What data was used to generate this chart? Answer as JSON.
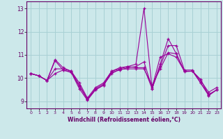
{
  "xlabel": "Windchill (Refroidissement éolien,°C)",
  "background_color": "#cce8ea",
  "grid_color": "#a8d0d4",
  "line_color": "#990099",
  "xlim": [
    -0.5,
    23.5
  ],
  "ylim": [
    8.7,
    13.3
  ],
  "yticks": [
    9,
    10,
    11,
    12,
    13
  ],
  "xticks": [
    0,
    1,
    2,
    3,
    4,
    5,
    6,
    7,
    8,
    9,
    10,
    11,
    12,
    13,
    14,
    15,
    16,
    17,
    18,
    19,
    20,
    21,
    22,
    23
  ],
  "series": [
    [
      10.2,
      10.1,
      9.9,
      10.75,
      10.35,
      10.25,
      9.65,
      9.1,
      9.55,
      9.75,
      10.3,
      10.4,
      10.5,
      10.45,
      10.45,
      9.55,
      10.6,
      11.7,
      11.05,
      10.3,
      10.3,
      9.8,
      9.25,
      9.5
    ],
    [
      10.2,
      10.1,
      9.9,
      10.2,
      10.35,
      10.25,
      9.55,
      9.05,
      9.5,
      9.7,
      10.2,
      10.38,
      10.4,
      10.4,
      10.4,
      9.7,
      10.4,
      11.1,
      11.05,
      10.28,
      10.3,
      9.95,
      9.28,
      9.5
    ],
    [
      10.2,
      10.1,
      9.9,
      10.8,
      10.45,
      10.3,
      9.8,
      9.15,
      9.6,
      9.8,
      10.3,
      10.45,
      10.5,
      10.6,
      13.0,
      9.55,
      10.5,
      11.4,
      11.4,
      10.35,
      10.35,
      9.8,
      9.3,
      9.5
    ],
    [
      10.2,
      10.1,
      9.9,
      10.4,
      10.4,
      10.3,
      9.7,
      9.1,
      9.5,
      9.7,
      10.25,
      10.35,
      10.45,
      10.5,
      10.7,
      9.6,
      10.9,
      11.05,
      10.9,
      10.3,
      10.3,
      9.9,
      9.4,
      9.6
    ]
  ]
}
